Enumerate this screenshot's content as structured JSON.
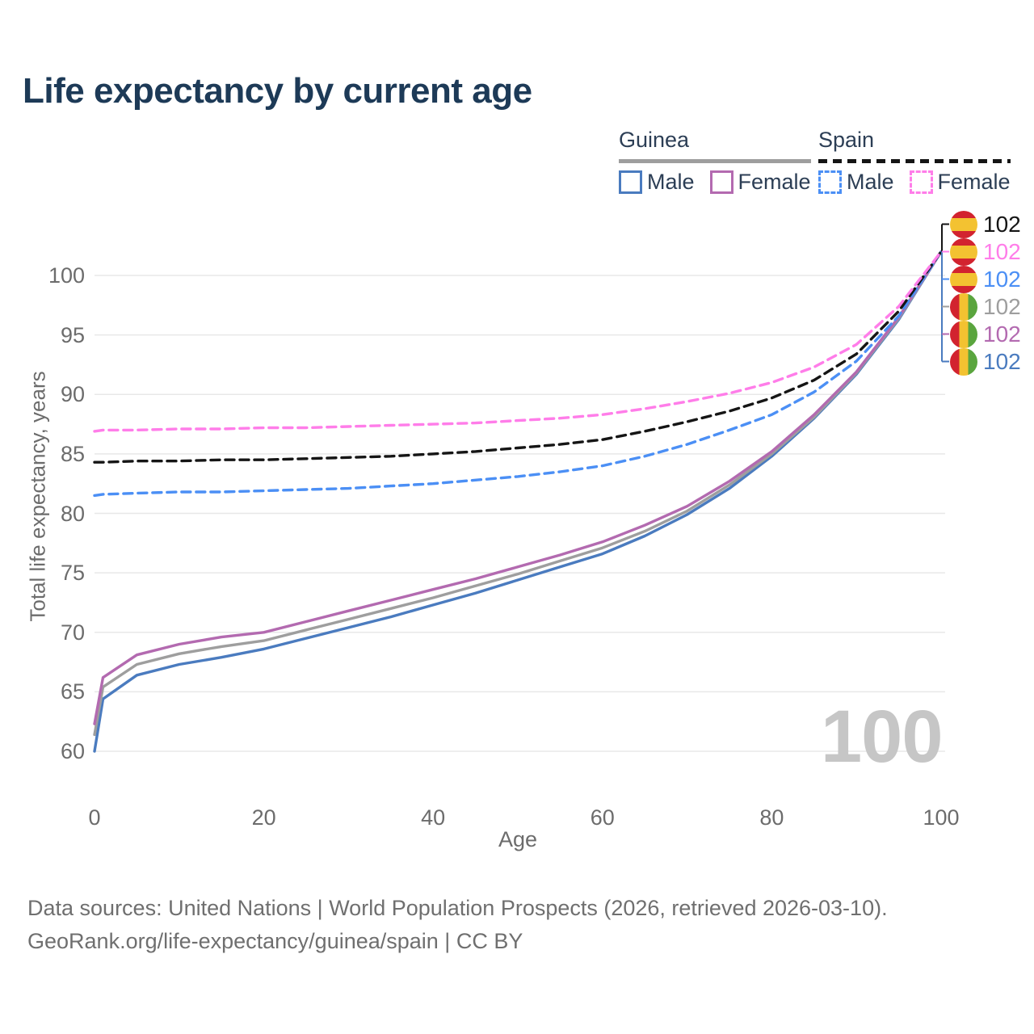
{
  "page": {
    "title": "Life expectancy by current age",
    "footer_line1": "Data sources: United Nations | World Population Prospects (2026, retrieved 2026-03-10).",
    "footer_line2": "GeoRank.org/life-expectancy/guinea/spain | CC BY"
  },
  "legend": {
    "groups": [
      {
        "name": "Guinea",
        "line_style": "solid",
        "underline_color": "#9e9e9e",
        "items": [
          {
            "label": "Male",
            "color": "#4a7bbf",
            "dashed": false
          },
          {
            "label": "Female",
            "color": "#b36ab0",
            "dashed": false
          }
        ]
      },
      {
        "name": "Spain",
        "line_style": "dashed",
        "underline_color": "#151515",
        "items": [
          {
            "label": "Male",
            "color": "#4b8ff5",
            "dashed": true
          },
          {
            "label": "Female",
            "color": "#ff7de9",
            "dashed": true
          }
        ]
      }
    ]
  },
  "chart_data": {
    "type": "line",
    "title": "Life expectancy by current age",
    "xlabel": "Age",
    "ylabel": "Total life expectancy, years",
    "xlim": [
      0,
      100
    ],
    "ylim": [
      58,
      103.5
    ],
    "x_ticks": [
      0,
      20,
      40,
      60,
      80,
      100
    ],
    "y_ticks": [
      60,
      65,
      70,
      75,
      80,
      85,
      90,
      95,
      100
    ],
    "grid": true,
    "legend_position": "top-right",
    "x": [
      0,
      1,
      5,
      10,
      15,
      20,
      25,
      30,
      35,
      40,
      45,
      50,
      55,
      60,
      65,
      70,
      75,
      80,
      85,
      90,
      95,
      100
    ],
    "series": [
      {
        "name": "Guinea Male",
        "color": "#4a7bbf",
        "dashed": false,
        "values": [
          60.0,
          64.4,
          66.4,
          67.3,
          67.9,
          68.6,
          69.5,
          70.4,
          71.3,
          72.3,
          73.3,
          74.4,
          75.5,
          76.6,
          78.1,
          79.9,
          82.1,
          84.8,
          88.0,
          91.7,
          96.3,
          102
        ]
      },
      {
        "name": "Guinea",
        "color": "#9e9e9e",
        "dashed": false,
        "values": [
          61.4,
          65.4,
          67.3,
          68.2,
          68.8,
          69.3,
          70.2,
          71.1,
          72.0,
          72.9,
          73.9,
          74.9,
          76.0,
          77.1,
          78.5,
          80.2,
          82.4,
          85.0,
          88.1,
          91.8,
          96.4,
          102
        ]
      },
      {
        "name": "Guinea Female",
        "color": "#b36ab0",
        "dashed": false,
        "values": [
          62.3,
          66.2,
          68.1,
          69.0,
          69.6,
          70.0,
          70.9,
          71.8,
          72.7,
          73.6,
          74.5,
          75.5,
          76.5,
          77.6,
          79.0,
          80.6,
          82.7,
          85.2,
          88.3,
          91.9,
          96.5,
          102
        ]
      },
      {
        "name": "Spain Male",
        "color": "#4b8ff5",
        "dashed": true,
        "values": [
          81.5,
          81.6,
          81.7,
          81.8,
          81.8,
          81.9,
          82.0,
          82.1,
          82.3,
          82.5,
          82.8,
          83.1,
          83.5,
          84.0,
          84.8,
          85.8,
          87.0,
          88.3,
          90.2,
          92.8,
          96.6,
          102
        ]
      },
      {
        "name": "Spain",
        "color": "#151515",
        "dashed": true,
        "values": [
          84.3,
          84.3,
          84.4,
          84.4,
          84.5,
          84.5,
          84.6,
          84.7,
          84.8,
          85.0,
          85.2,
          85.5,
          85.8,
          86.2,
          86.9,
          87.7,
          88.6,
          89.7,
          91.2,
          93.4,
          97.0,
          102
        ]
      },
      {
        "name": "Spain Female",
        "color": "#ff7de9",
        "dashed": true,
        "values": [
          86.9,
          87.0,
          87.0,
          87.1,
          87.1,
          87.2,
          87.2,
          87.3,
          87.4,
          87.5,
          87.6,
          87.8,
          88.0,
          88.3,
          88.8,
          89.4,
          90.1,
          91.0,
          92.3,
          94.2,
          97.4,
          102
        ]
      }
    ],
    "end_labels": [
      {
        "value": "102",
        "flag": "spain",
        "color": "#151515"
      },
      {
        "value": "102",
        "flag": "spain",
        "color": "#ff7de9"
      },
      {
        "value": "102",
        "flag": "spain",
        "color": "#4b8ff5"
      },
      {
        "value": "102",
        "flag": "guinea",
        "color": "#9e9e9e"
      },
      {
        "value": "102",
        "flag": "guinea",
        "color": "#b36ab0"
      },
      {
        "value": "102",
        "flag": "guinea",
        "color": "#4a7bbf"
      }
    ],
    "watermark": "100"
  },
  "flags": {
    "spain": {
      "direction": "horizontal",
      "stripes": [
        "#d2232f",
        "#f3c231",
        "#d2232f"
      ],
      "ratios": [
        0.27,
        0.46,
        0.27
      ]
    },
    "guinea": {
      "direction": "vertical",
      "stripes": [
        "#d2232f",
        "#f3c231",
        "#5aa53e"
      ],
      "ratios": [
        0.334,
        0.333,
        0.333
      ]
    }
  },
  "colors": {
    "title": "#1d3a57",
    "legend_text": "#2c3e55",
    "axis_text": "#6c6c6c",
    "grid": "#e8e8e8",
    "watermark": "#c6c6c6",
    "footer": "#6f6f6f",
    "background": "#ffffff"
  }
}
